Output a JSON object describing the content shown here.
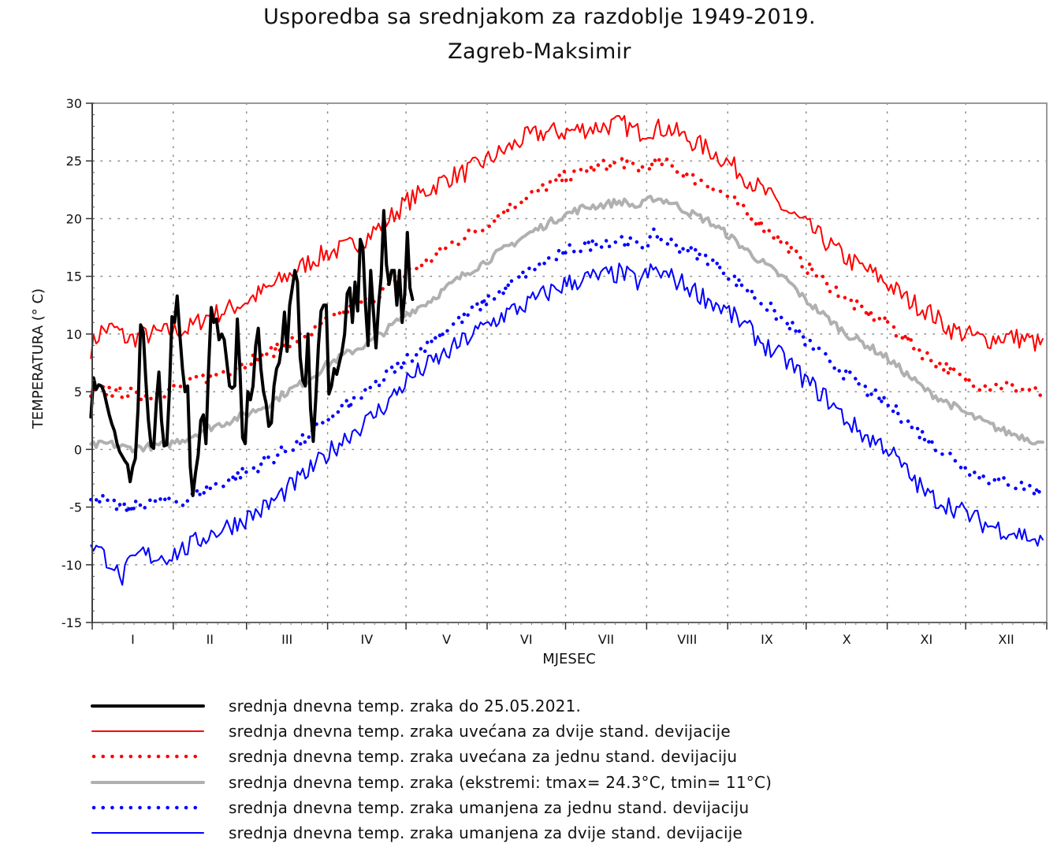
{
  "chart_data": {
    "type": "line",
    "title": "Usporedba sa srednjakom za razdoblje 1949-2019.",
    "subtitle": "Zagreb-Maksimir",
    "xlabel": "MJESEC",
    "ylabel": "TEMPERATURA (° C)",
    "ylim": [
      -15,
      30
    ],
    "yticks": [
      30,
      25,
      20,
      15,
      10,
      5,
      0,
      -5,
      -10,
      -15
    ],
    "ytick_labels": [
      "30",
      "25",
      "20",
      "15",
      "10",
      "5",
      "0",
      "-5",
      "-10",
      "-15"
    ],
    "xlim_days": [
      1,
      365
    ],
    "month_start_days": [
      1,
      32,
      60,
      91,
      121,
      152,
      182,
      213,
      244,
      274,
      305,
      335,
      366
    ],
    "categories": [
      "I",
      "II",
      "III",
      "IV",
      "V",
      "VI",
      "VII",
      "VIII",
      "IX",
      "X",
      "XI",
      "XII"
    ],
    "grid": true,
    "legend_position": "bottom",
    "series": [
      {
        "name": "srednja dnevna temp. zraka do 25.05.2021.",
        "key": "observed",
        "color": "#000000",
        "style": "solid-thick",
        "start_day": 1,
        "values": [
          2.8,
          6.2,
          5.2,
          5.6,
          5.5,
          5.0,
          4.0,
          3.0,
          2.2,
          1.6,
          0.5,
          -0.2,
          -0.6,
          -1.0,
          -1.3,
          -2.8,
          -1.5,
          -0.8,
          3.5,
          10.8,
          10.2,
          6.0,
          2.5,
          0.3,
          0.1,
          4.0,
          6.7,
          2.5,
          0.3,
          0.4,
          5.0,
          11.5,
          11.0,
          13.3,
          10.0,
          7.0,
          5.0,
          5.5,
          -1.5,
          -4.0,
          -2.0,
          -0.5,
          2.5,
          3.0,
          0.5,
          7.0,
          12.3,
          11.0,
          11.3,
          9.5,
          10.0,
          9.5,
          7.5,
          5.5,
          5.3,
          5.5,
          11.3,
          6.8,
          1.0,
          0.5,
          5.0,
          4.3,
          5.5,
          9.0,
          10.5,
          7.0,
          5.0,
          4.0,
          2.0,
          2.3,
          5.5,
          7.0,
          7.5,
          9.0,
          11.9,
          8.5,
          12.5,
          14.0,
          15.5,
          14.5,
          8.0,
          6.0,
          5.5,
          10.0,
          3.5,
          0.7,
          4.5,
          9.0,
          12.0,
          12.5,
          12.5,
          4.8,
          5.5,
          7.0,
          6.5,
          7.5,
          8.5,
          10.0,
          13.5,
          14.0,
          11.0,
          14.5,
          12.0,
          18.2,
          17.5,
          12.5,
          9.0,
          15.5,
          12.0,
          8.8,
          12.5,
          15.0,
          20.7,
          16.0,
          14.3,
          15.5,
          15.5,
          12.5,
          15.5,
          11.0,
          13.5,
          18.8,
          14.0,
          13.0
        ]
      },
      {
        "name": "srednja dnevna temp. zraka uvećana za dvije stand. devijacije",
        "key": "plus2sd",
        "color": "#ff0000",
        "style": "solid-thin",
        "anchors": [
          [
            1,
            8.8
          ],
          [
            5,
            10.3
          ],
          [
            10,
            10.5
          ],
          [
            15,
            9.5
          ],
          [
            20,
            9.8
          ],
          [
            25,
            10.0
          ],
          [
            31,
            10.2
          ],
          [
            38,
            10.4
          ],
          [
            45,
            11.5
          ],
          [
            52,
            12.0
          ],
          [
            60,
            12.8
          ],
          [
            68,
            13.8
          ],
          [
            76,
            15.0
          ],
          [
            84,
            16.2
          ],
          [
            91,
            17.0
          ],
          [
            99,
            17.5
          ],
          [
            107,
            18.5
          ],
          [
            115,
            20.0
          ],
          [
            122,
            21.5
          ],
          [
            130,
            22.5
          ],
          [
            137,
            23.5
          ],
          [
            144,
            24.0
          ],
          [
            152,
            25.0
          ],
          [
            160,
            26.0
          ],
          [
            167,
            27.0
          ],
          [
            175,
            27.5
          ],
          [
            182,
            27.5
          ],
          [
            190,
            27.8
          ],
          [
            197,
            28.0
          ],
          [
            204,
            28.2
          ],
          [
            210,
            27.5
          ],
          [
            216,
            27.8
          ],
          [
            222,
            27.8
          ],
          [
            230,
            26.8
          ],
          [
            237,
            26.0
          ],
          [
            244,
            25.0
          ],
          [
            252,
            23.5
          ],
          [
            260,
            22.0
          ],
          [
            268,
            20.5
          ],
          [
            274,
            19.5
          ],
          [
            282,
            18.0
          ],
          [
            290,
            16.5
          ],
          [
            298,
            15.5
          ],
          [
            305,
            14.5
          ],
          [
            313,
            13.0
          ],
          [
            321,
            12.0
          ],
          [
            329,
            10.5
          ],
          [
            335,
            10.0
          ],
          [
            343,
            9.5
          ],
          [
            351,
            9.8
          ],
          [
            359,
            9.5
          ],
          [
            365,
            9.0
          ]
        ]
      },
      {
        "name": "srednja dnevna temp. zraka uvećana za jednu stand. devijaciju",
        "key": "plus1sd",
        "color": "#ff0000",
        "style": "dotted",
        "anchors": [
          [
            1,
            4.7
          ],
          [
            8,
            5.1
          ],
          [
            15,
            4.8
          ],
          [
            22,
            4.7
          ],
          [
            31,
            5.2
          ],
          [
            38,
            5.5
          ],
          [
            45,
            6.2
          ],
          [
            52,
            6.8
          ],
          [
            60,
            7.5
          ],
          [
            68,
            8.2
          ],
          [
            76,
            9.2
          ],
          [
            84,
            10.0
          ],
          [
            91,
            11.0
          ],
          [
            99,
            12.0
          ],
          [
            107,
            12.8
          ],
          [
            115,
            14.0
          ],
          [
            122,
            15.3
          ],
          [
            130,
            16.3
          ],
          [
            137,
            17.5
          ],
          [
            144,
            18.5
          ],
          [
            152,
            19.5
          ],
          [
            160,
            20.8
          ],
          [
            167,
            21.8
          ],
          [
            175,
            22.8
          ],
          [
            182,
            23.5
          ],
          [
            190,
            24.2
          ],
          [
            197,
            24.5
          ],
          [
            204,
            25.0
          ],
          [
            210,
            24.2
          ],
          [
            216,
            24.8
          ],
          [
            222,
            24.7
          ],
          [
            230,
            23.7
          ],
          [
            237,
            23.0
          ],
          [
            244,
            22.0
          ],
          [
            252,
            20.5
          ],
          [
            260,
            19.0
          ],
          [
            268,
            17.5
          ],
          [
            274,
            16.0
          ],
          [
            282,
            14.5
          ],
          [
            290,
            13.0
          ],
          [
            298,
            11.8
          ],
          [
            305,
            11.0
          ],
          [
            313,
            9.5
          ],
          [
            321,
            8.0
          ],
          [
            329,
            7.0
          ],
          [
            335,
            6.0
          ],
          [
            343,
            5.5
          ],
          [
            351,
            5.5
          ],
          [
            359,
            5.2
          ],
          [
            365,
            4.8
          ]
        ]
      },
      {
        "name": "srednja dnevna temp. zraka (ekstremi: tmax= 24.3°C, tmin= 11°C)",
        "key": "mean",
        "color": "#b0b0b0",
        "style": "solid-thick",
        "anchors": [
          [
            1,
            0.3
          ],
          [
            8,
            0.5
          ],
          [
            15,
            0.1
          ],
          [
            22,
            0.2
          ],
          [
            31,
            0.5
          ],
          [
            38,
            1.0
          ],
          [
            45,
            1.8
          ],
          [
            52,
            2.3
          ],
          [
            60,
            3.0
          ],
          [
            68,
            3.8
          ],
          [
            76,
            5.0
          ],
          [
            84,
            6.0
          ],
          [
            91,
            7.3
          ],
          [
            99,
            8.3
          ],
          [
            107,
            9.2
          ],
          [
            115,
            10.5
          ],
          [
            122,
            11.8
          ],
          [
            130,
            12.8
          ],
          [
            137,
            14.0
          ],
          [
            144,
            15.2
          ],
          [
            152,
            16.3
          ],
          [
            160,
            17.5
          ],
          [
            167,
            18.5
          ],
          [
            175,
            19.5
          ],
          [
            182,
            20.3
          ],
          [
            190,
            21.0
          ],
          [
            197,
            21.2
          ],
          [
            204,
            21.5
          ],
          [
            210,
            21.0
          ],
          [
            216,
            21.8
          ],
          [
            222,
            21.5
          ],
          [
            230,
            20.5
          ],
          [
            237,
            19.8
          ],
          [
            244,
            18.7
          ],
          [
            252,
            17.2
          ],
          [
            260,
            15.8
          ],
          [
            268,
            14.5
          ],
          [
            274,
            13.0
          ],
          [
            282,
            11.5
          ],
          [
            290,
            10.0
          ],
          [
            298,
            9.0
          ],
          [
            305,
            8.0
          ],
          [
            313,
            6.5
          ],
          [
            321,
            5.0
          ],
          [
            329,
            4.0
          ],
          [
            335,
            3.2
          ],
          [
            343,
            2.3
          ],
          [
            351,
            1.5
          ],
          [
            359,
            1.0
          ],
          [
            365,
            0.4
          ]
        ]
      },
      {
        "name": "srednja dnevna temp. zraka umanjena za jednu stand. devijaciju",
        "key": "minus1sd",
        "color": "#0000ff",
        "style": "dotted",
        "anchors": [
          [
            1,
            -4.0
          ],
          [
            8,
            -4.7
          ],
          [
            15,
            -5.3
          ],
          [
            22,
            -4.6
          ],
          [
            31,
            -4.5
          ],
          [
            38,
            -4.3
          ],
          [
            45,
            -3.5
          ],
          [
            52,
            -2.8
          ],
          [
            60,
            -2.0
          ],
          [
            68,
            -1.0
          ],
          [
            76,
            0.0
          ],
          [
            84,
            1.0
          ],
          [
            91,
            2.5
          ],
          [
            99,
            3.8
          ],
          [
            107,
            5.0
          ],
          [
            115,
            6.5
          ],
          [
            122,
            7.8
          ],
          [
            130,
            9.2
          ],
          [
            137,
            10.5
          ],
          [
            144,
            11.5
          ],
          [
            152,
            12.8
          ],
          [
            160,
            14.0
          ],
          [
            167,
            15.2
          ],
          [
            175,
            16.3
          ],
          [
            182,
            17.0
          ],
          [
            190,
            17.7
          ],
          [
            197,
            18.0
          ],
          [
            204,
            18.2
          ],
          [
            210,
            17.5
          ],
          [
            216,
            18.5
          ],
          [
            222,
            18.0
          ],
          [
            230,
            17.2
          ],
          [
            237,
            16.5
          ],
          [
            244,
            15.3
          ],
          [
            252,
            13.8
          ],
          [
            260,
            12.3
          ],
          [
            268,
            10.8
          ],
          [
            274,
            9.5
          ],
          [
            282,
            7.8
          ],
          [
            290,
            6.5
          ],
          [
            298,
            5.0
          ],
          [
            305,
            4.0
          ],
          [
            313,
            2.5
          ],
          [
            321,
            0.8
          ],
          [
            329,
            -0.5
          ],
          [
            335,
            -1.5
          ],
          [
            343,
            -2.5
          ],
          [
            351,
            -2.8
          ],
          [
            359,
            -3.3
          ],
          [
            365,
            -3.8
          ]
        ]
      },
      {
        "name": "srednja dnevna temp. zraka umanjena za dvije stand. devijacije",
        "key": "minus2sd",
        "color": "#0000ff",
        "style": "solid-thin",
        "anchors": [
          [
            1,
            -8.0
          ],
          [
            5,
            -9.0
          ],
          [
            10,
            -10.0
          ],
          [
            12,
            -11.5
          ],
          [
            15,
            -10.3
          ],
          [
            20,
            -9.0
          ],
          [
            25,
            -9.3
          ],
          [
            31,
            -9.2
          ],
          [
            38,
            -8.5
          ],
          [
            45,
            -7.5
          ],
          [
            52,
            -6.8
          ],
          [
            60,
            -6.0
          ],
          [
            68,
            -5.0
          ],
          [
            76,
            -3.5
          ],
          [
            84,
            -2.0
          ],
          [
            91,
            -0.5
          ],
          [
            99,
            1.2
          ],
          [
            107,
            2.5
          ],
          [
            115,
            4.2
          ],
          [
            122,
            6.0
          ],
          [
            130,
            7.3
          ],
          [
            137,
            8.3
          ],
          [
            144,
            9.5
          ],
          [
            152,
            10.7
          ],
          [
            160,
            11.8
          ],
          [
            167,
            12.5
          ],
          [
            175,
            13.5
          ],
          [
            182,
            14.3
          ],
          [
            190,
            14.8
          ],
          [
            197,
            15.0
          ],
          [
            204,
            15.3
          ],
          [
            210,
            14.5
          ],
          [
            216,
            15.5
          ],
          [
            222,
            15.0
          ],
          [
            230,
            14.0
          ],
          [
            237,
            13.0
          ],
          [
            244,
            12.0
          ],
          [
            252,
            10.5
          ],
          [
            260,
            8.8
          ],
          [
            268,
            7.5
          ],
          [
            274,
            6.0
          ],
          [
            282,
            4.5
          ],
          [
            290,
            2.5
          ],
          [
            298,
            1.0
          ],
          [
            305,
            0.3
          ],
          [
            313,
            -2.0
          ],
          [
            321,
            -4.0
          ],
          [
            329,
            -4.8
          ],
          [
            335,
            -5.5
          ],
          [
            343,
            -6.5
          ],
          [
            351,
            -7.0
          ],
          [
            359,
            -7.5
          ],
          [
            365,
            -8.2
          ]
        ]
      }
    ]
  }
}
